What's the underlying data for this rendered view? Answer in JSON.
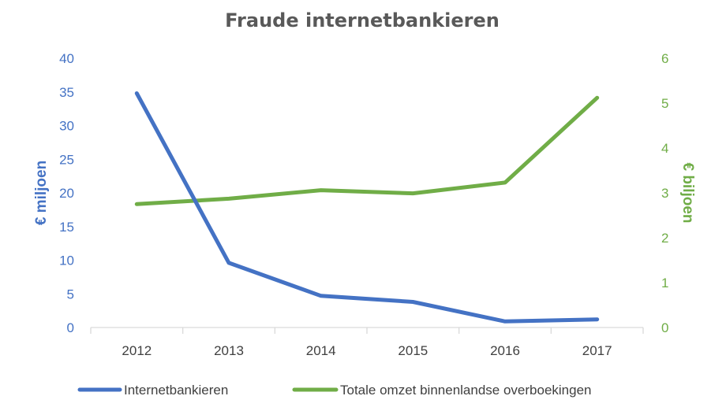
{
  "chart_data": {
    "type": "line",
    "title": "Fraude internetbankieren",
    "categories": [
      "2012",
      "2013",
      "2014",
      "2015",
      "2016",
      "2017"
    ],
    "y_left": {
      "label": "€ miljoen",
      "range": [
        0,
        40
      ],
      "ticks": [
        "0",
        "5",
        "10",
        "15",
        "20",
        "25",
        "30",
        "35",
        "40"
      ],
      "color": "#4472c4"
    },
    "y_right": {
      "label": "€ biljoen",
      "range": [
        0,
        6
      ],
      "ticks": [
        "0",
        "1",
        "2",
        "3",
        "4",
        "5",
        "6"
      ],
      "color": "#70ad47"
    },
    "series": [
      {
        "name": "Internetbankieren",
        "axis": "left",
        "color": "#4472c4",
        "values": [
          34.8,
          9.6,
          4.7,
          3.8,
          0.9,
          1.2
        ]
      },
      {
        "name": "Totale omzet binnenlandse overboekingen",
        "axis": "right",
        "color": "#70ad47",
        "values": [
          2.75,
          2.87,
          3.06,
          2.99,
          3.23,
          5.12
        ]
      }
    ],
    "legend_position": "bottom",
    "grid": false
  }
}
